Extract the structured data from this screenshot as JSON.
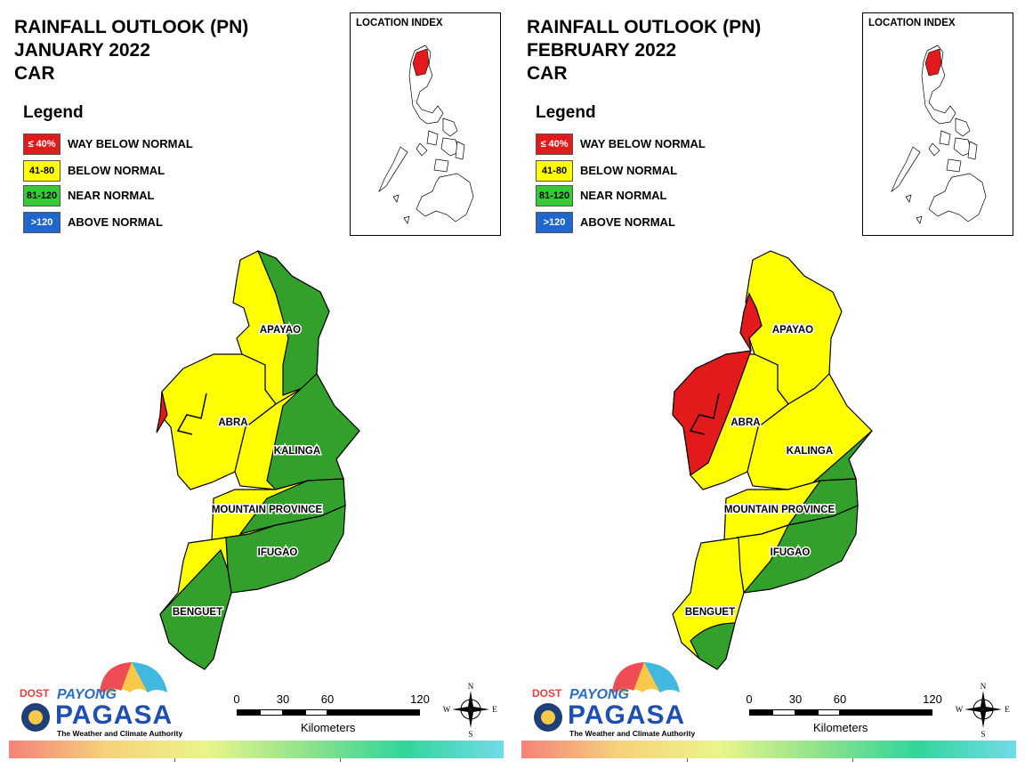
{
  "panels": [
    {
      "title_line1": "RAINFALL OUTLOOK (PN)",
      "title_line2": "JANUARY 2022",
      "title_line3": "CAR",
      "legend_title": "Legend",
      "legend": [
        {
          "range": "≤ 40%",
          "label": "WAY BELOW NORMAL",
          "color": "#e31a1c"
        },
        {
          "range": "41-80",
          "label": "BELOW NORMAL",
          "color": "#ffff00"
        },
        {
          "range": "81-120",
          "label": "NEAR NORMAL",
          "color": "#33a02c"
        },
        {
          "range": ">120",
          "label": "ABOVE NORMAL",
          "color": "#1f66d1"
        }
      ],
      "inset_label": "LOCATION INDEX",
      "provinces": {
        "apayao": "APAYAO",
        "abra": "ABRA",
        "kalinga": "KALINGA",
        "mountain_province": "MOUNTAIN PROVINCE",
        "ifugao": "IFUGAO",
        "benguet": "BENGUET"
      },
      "scale_ticks": [
        "0",
        "30",
        "60",
        "120"
      ],
      "scale_unit": "Kilometers",
      "compass": {
        "n": "N",
        "s": "S",
        "e": "E",
        "w": "W"
      },
      "logo": {
        "dost": "DOST",
        "payong": "PAYONG",
        "pagasa": "PAGASA",
        "tagline": "The Weather and Climate Authority"
      }
    },
    {
      "title_line1": "RAINFALL OUTLOOK (PN)",
      "title_line2": "FEBRUARY 2022",
      "title_line3": "CAR",
      "legend_title": "Legend",
      "legend": [
        {
          "range": "≤ 40%",
          "label": "WAY BELOW NORMAL",
          "color": "#e31a1c"
        },
        {
          "range": "41-80",
          "label": "BELOW NORMAL",
          "color": "#ffff00"
        },
        {
          "range": "81-120",
          "label": "NEAR NORMAL",
          "color": "#33a02c"
        },
        {
          "range": ">120",
          "label": "ABOVE NORMAL",
          "color": "#1f66d1"
        }
      ],
      "inset_label": "LOCATION INDEX",
      "provinces": {
        "apayao": "APAYAO",
        "abra": "ABRA",
        "kalinga": "KALINGA",
        "mountain_province": "MOUNTAIN PROVINCE",
        "ifugao": "IFUGAO",
        "benguet": "BENGUET"
      },
      "scale_ticks": [
        "0",
        "30",
        "60",
        "120"
      ],
      "scale_unit": "Kilometers",
      "compass": {
        "n": "N",
        "s": "S",
        "e": "E",
        "w": "W"
      },
      "logo": {
        "dost": "DOST",
        "payong": "PAYONG",
        "pagasa": "PAGASA",
        "tagline": "The Weather and Climate Authority"
      }
    }
  ]
}
